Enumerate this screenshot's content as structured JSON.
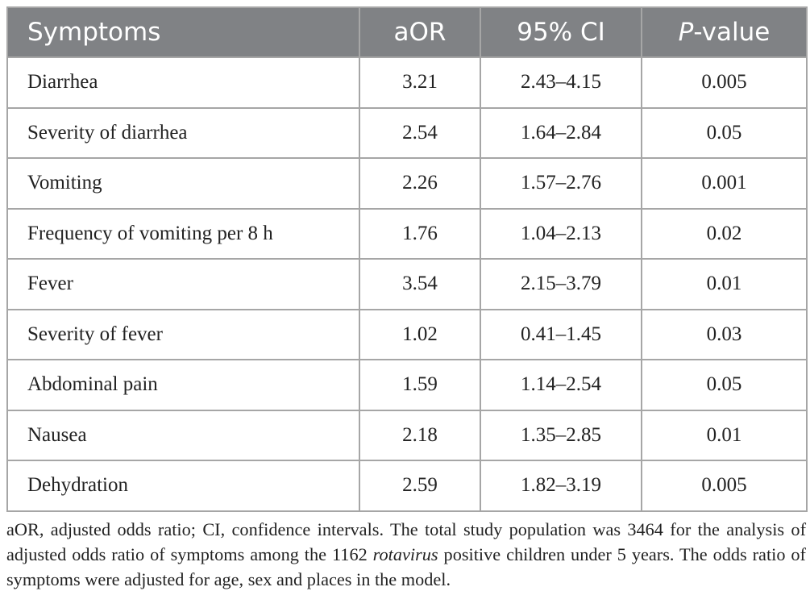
{
  "table": {
    "header": [
      [
        "Symptoms"
      ],
      [
        "aOR"
      ],
      [
        "95% CI"
      ],
      [
        "P",
        "-value"
      ]
    ],
    "rows": [
      [
        "Diarrhea",
        "3.21",
        "2.43–4.15",
        "0.005"
      ],
      [
        "Severity of diarrhea",
        "2.54",
        "1.64–2.84",
        "0.05"
      ],
      [
        "Vomiting",
        "2.26",
        "1.57–2.76",
        "0.001"
      ],
      [
        "Frequency of vomiting per 8 h",
        "1.76",
        "1.04–2.13",
        "0.02"
      ],
      [
        "Fever",
        "3.54",
        "2.15–3.79",
        "0.01"
      ],
      [
        "Severity of fever",
        "1.02",
        "0.41–1.45",
        "0.03"
      ],
      [
        "Abdominal pain",
        "1.59",
        "1.14–2.54",
        "0.05"
      ],
      [
        "Nausea",
        "2.18",
        "1.35–2.85",
        "0.01"
      ],
      [
        "Dehydration",
        "2.59",
        "1.82–3.19",
        "0.005"
      ]
    ]
  },
  "footnote": [
    "aOR, adjusted odds ratio; CI, confidence intervals. The total study population was 3464 for the analysis of adjusted odds ratio of symptoms among the 1162 ",
    "rotavirus",
    " positive children under 5 years. The odds ratio of symptoms were adjusted for age, sex and places in the model."
  ]
}
